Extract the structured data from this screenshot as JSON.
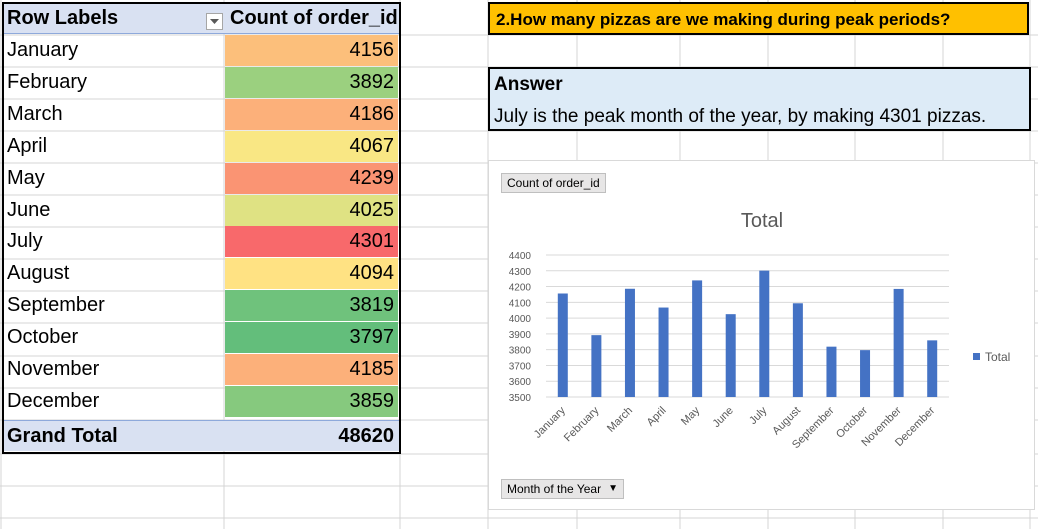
{
  "pivot": {
    "header": {
      "row_labels": "Row Labels",
      "value_header": "Count of order_id"
    },
    "rows": [
      {
        "label": "January",
        "value": "4156",
        "color": "#fcbf7b"
      },
      {
        "label": "February",
        "value": "3892",
        "color": "#9bd07f"
      },
      {
        "label": "March",
        "value": "4186",
        "color": "#fcb07a"
      },
      {
        "label": "April",
        "value": "4067",
        "color": "#f9e784"
      },
      {
        "label": "May",
        "value": "4239",
        "color": "#fa9473"
      },
      {
        "label": "June",
        "value": "4025",
        "color": "#dfe283"
      },
      {
        "label": "July",
        "value": "4301",
        "color": "#f8696b"
      },
      {
        "label": "August",
        "value": "4094",
        "color": "#ffe283"
      },
      {
        "label": "September",
        "value": "3819",
        "color": "#6fc27c"
      },
      {
        "label": "October",
        "value": "3797",
        "color": "#63be7b"
      },
      {
        "label": "November",
        "value": "4185",
        "color": "#fcb07a"
      },
      {
        "label": "December",
        "value": "3859",
        "color": "#86c97e"
      }
    ],
    "grand_total": {
      "label": "Grand Total",
      "value": "48620"
    }
  },
  "question": {
    "text": "2.How many pizzas are we making during peak periods?"
  },
  "answer": {
    "title": "Answer",
    "text": "July is the peak month of the year, by making 4301 pizzas."
  },
  "chart_buttons": {
    "value_field": "Count of order_id",
    "axis_field": "Month of the Year"
  },
  "chart_data": {
    "type": "bar",
    "title": "Total",
    "categories": [
      "January",
      "February",
      "March",
      "April",
      "May",
      "June",
      "July",
      "August",
      "September",
      "October",
      "November",
      "December"
    ],
    "series": [
      {
        "name": "Total",
        "values": [
          4156,
          3892,
          4186,
          4067,
          4239,
          4025,
          4301,
          4094,
          3819,
          3797,
          4185,
          3859
        ],
        "color": "#4472c4"
      }
    ],
    "ylim": [
      3500,
      4400
    ],
    "yticks": [
      "3500",
      "3600",
      "3700",
      "3800",
      "3900",
      "4000",
      "4100",
      "4200",
      "4300",
      "4400"
    ],
    "grid": true,
    "legend": "right"
  }
}
